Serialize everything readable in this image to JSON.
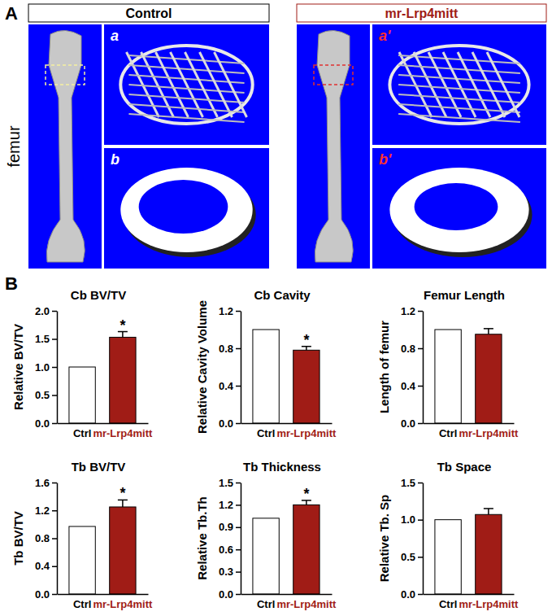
{
  "panel_labels": [
    "A",
    "B"
  ],
  "panel_a": {
    "row_label": "femur",
    "groups": [
      {
        "title": "Control",
        "views": [
          "a",
          "b"
        ]
      },
      {
        "title": "mr-Lrp4mitt",
        "views": [
          "a'",
          "b'"
        ]
      }
    ]
  },
  "chart_data": [
    {
      "type": "bar",
      "title": "Cb BV/TV",
      "y_label": "Relative BV/TV",
      "categories": [
        "Ctrl",
        "mr-Lrp4mitt"
      ],
      "values": [
        1.0,
        1.53
      ],
      "errors": [
        null,
        0.1
      ],
      "significance": [
        null,
        "*"
      ],
      "colors": [
        "#ffffff",
        "#a01c16"
      ],
      "ylim": [
        0,
        2.0
      ],
      "yticks": [
        {
          "value": 0,
          "label": "0.0"
        },
        {
          "value": 0.5,
          "label": "0.5"
        },
        {
          "value": 1,
          "label": "1.0"
        },
        {
          "value": 1.5,
          "label": "1.5"
        },
        {
          "value": 2,
          "label": "2.0"
        }
      ]
    },
    {
      "type": "bar",
      "title": "Cb Cavity",
      "y_label": "Relative Cavity Volume",
      "categories": [
        "Ctrl",
        "mr-Lrp4mitt"
      ],
      "values": [
        1.0,
        0.78
      ],
      "errors": [
        null,
        0.04
      ],
      "significance": [
        null,
        "*"
      ],
      "colors": [
        "#ffffff",
        "#a01c16"
      ],
      "ylim": [
        0,
        1.2
      ],
      "yticks": [
        {
          "value": 0,
          "label": "0.0"
        },
        {
          "value": 0.4,
          "label": "0.4"
        },
        {
          "value": 0.8,
          "label": "0.8"
        },
        {
          "value": 1.2,
          "label": "1.2"
        }
      ]
    },
    {
      "type": "bar",
      "title": "Femur Length",
      "y_label": "Length of femur",
      "categories": [
        "Ctrl",
        "mr-Lrp4mitt"
      ],
      "values": [
        1.0,
        0.95
      ],
      "errors": [
        null,
        0.06
      ],
      "colors": [
        "#ffffff",
        "#a01c16"
      ],
      "ylim": [
        0,
        1.2
      ],
      "yticks": [
        {
          "value": 0,
          "label": "0.0"
        },
        {
          "value": 0.4,
          "label": "0.4"
        },
        {
          "value": 0.8,
          "label": "0.8"
        },
        {
          "value": 1.2,
          "label": "1.2"
        }
      ]
    },
    {
      "type": "bar",
      "title": "Tb BV/TV",
      "y_label": "Tb BV/TV",
      "categories": [
        "Ctrl",
        "mr-Lrp4mitt"
      ],
      "values": [
        0.97,
        1.25
      ],
      "errors": [
        null,
        0.1
      ],
      "significance": [
        null,
        "*"
      ],
      "colors": [
        "#ffffff",
        "#a01c16"
      ],
      "ylim": [
        0,
        1.6
      ],
      "yticks": [
        {
          "value": 0,
          "label": "0.0"
        },
        {
          "value": 0.4,
          "label": "0.4"
        },
        {
          "value": 0.8,
          "label": "0.8"
        },
        {
          "value": 1.2,
          "label": "1.2"
        },
        {
          "value": 1.6,
          "label": "1.6"
        }
      ]
    },
    {
      "type": "bar",
      "title": "Tb Thickness",
      "y_label": "Relative Tb.Th",
      "categories": [
        "Ctrl",
        "mr-Lrp4mitt"
      ],
      "values": [
        1.02,
        1.2
      ],
      "errors": [
        null,
        0.06
      ],
      "significance": [
        null,
        "*"
      ],
      "colors": [
        "#ffffff",
        "#a01c16"
      ],
      "ylim": [
        0,
        1.5
      ],
      "yticks": [
        {
          "value": 0,
          "label": "0.0"
        },
        {
          "value": 0.3,
          "label": "0.3"
        },
        {
          "value": 0.6,
          "label": "0.6"
        },
        {
          "value": 0.9,
          "label": "0.9"
        },
        {
          "value": 1.2,
          "label": "1.2"
        },
        {
          "value": 1.5,
          "label": "1.5"
        }
      ]
    },
    {
      "type": "bar",
      "title": "Tb Space",
      "y_label": "Relative Tb. Sp",
      "categories": [
        "Ctrl",
        "mr-Lrp4mitt"
      ],
      "values": [
        1.0,
        1.07
      ],
      "errors": [
        null,
        0.08
      ],
      "colors": [
        "#ffffff",
        "#a01c16"
      ],
      "ylim": [
        0,
        1.5
      ],
      "yticks": [
        {
          "value": 0,
          "label": "0.0"
        },
        {
          "value": 0.5,
          "label": "0.5"
        },
        {
          "value": 1,
          "label": "1.0"
        },
        {
          "value": 1.5,
          "label": "1.5"
        }
      ]
    }
  ]
}
